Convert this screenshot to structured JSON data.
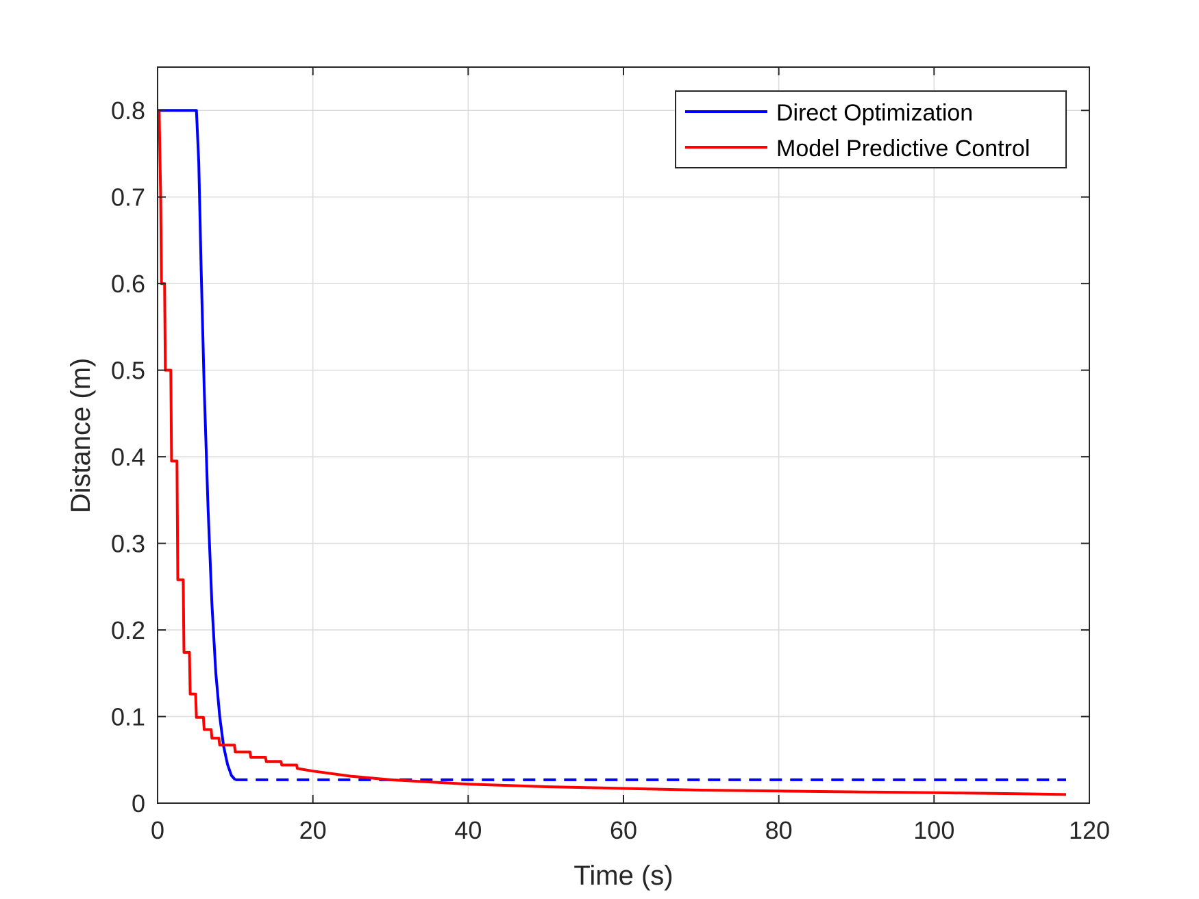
{
  "chart_data": {
    "type": "line",
    "xlabel": "Time (s)",
    "ylabel": "Distance (m)",
    "xlim": [
      0,
      120
    ],
    "ylim": [
      0,
      0.85
    ],
    "xticks": [
      0,
      20,
      40,
      60,
      80,
      100,
      120
    ],
    "xtick_labels": [
      "0",
      "20",
      "40",
      "60",
      "80",
      "100",
      "120"
    ],
    "yticks": [
      0,
      0.1,
      0.2,
      0.3,
      0.4,
      0.5,
      0.6,
      0.7,
      0.8
    ],
    "ytick_labels": [
      "0",
      "0.1",
      "0.2",
      "0.3",
      "0.4",
      "0.5",
      "0.6",
      "0.7",
      "0.8"
    ],
    "grid": true,
    "legend_position": "top-right",
    "series": [
      {
        "name": "Direct Optimization",
        "color": "#0000ff",
        "style": "solid",
        "x": [
          0,
          5.0,
          5.3,
          5.6,
          6.0,
          6.5,
          7.0,
          7.5,
          8.0,
          8.5,
          9.0,
          9.5,
          10.0
        ],
        "y": [
          0.8,
          0.8,
          0.74,
          0.62,
          0.48,
          0.34,
          0.23,
          0.15,
          0.1,
          0.066,
          0.045,
          0.032,
          0.027
        ]
      },
      {
        "name": "",
        "color": "#0000ff",
        "style": "dashed",
        "x": [
          10.0,
          117
        ],
        "y": [
          0.027,
          0.027
        ]
      },
      {
        "name": "Model Predictive Control",
        "color": "#ff0000",
        "style": "solid",
        "x": [
          0,
          0.2,
          0.4,
          0.5,
          0.9,
          1.0,
          1.7,
          1.8,
          2.5,
          2.6,
          3.3,
          3.4,
          4.1,
          4.2,
          4.9,
          5.0,
          5.9,
          6.0,
          6.9,
          7.0,
          7.9,
          8.0,
          9.9,
          10.0,
          11.9,
          12.0,
          13.9,
          14.0,
          15.9,
          16.0,
          17.9,
          18.0,
          20,
          25,
          30,
          40,
          50,
          60,
          70,
          80,
          90,
          100,
          110,
          117
        ],
        "y": [
          0.8,
          0.8,
          0.7,
          0.6,
          0.6,
          0.5,
          0.5,
          0.395,
          0.395,
          0.258,
          0.258,
          0.174,
          0.174,
          0.126,
          0.126,
          0.099,
          0.099,
          0.085,
          0.085,
          0.075,
          0.075,
          0.067,
          0.067,
          0.059,
          0.059,
          0.053,
          0.053,
          0.048,
          0.048,
          0.044,
          0.044,
          0.04,
          0.037,
          0.031,
          0.027,
          0.022,
          0.019,
          0.017,
          0.015,
          0.014,
          0.013,
          0.012,
          0.011,
          0.01
        ]
      }
    ]
  }
}
